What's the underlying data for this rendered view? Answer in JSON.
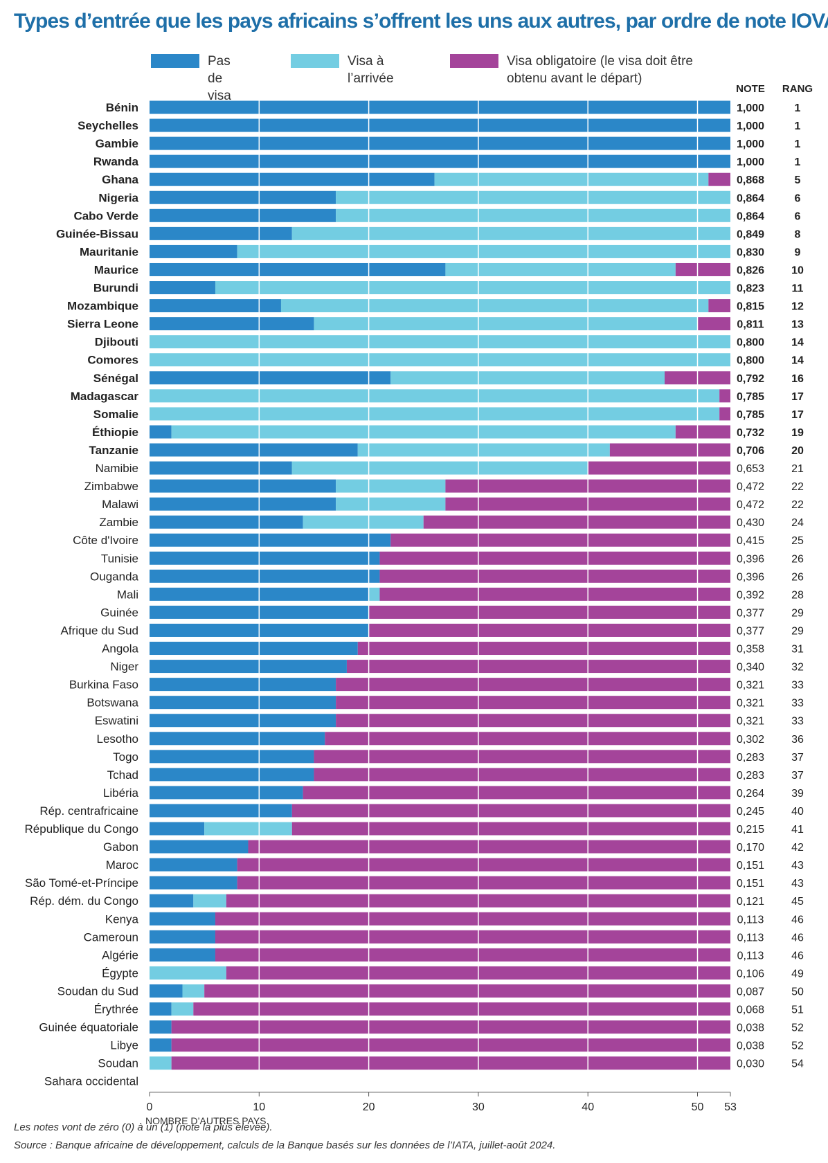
{
  "title": "Types d’entrée que les pays africains s’offrent les uns aux autres, par ordre de note IOVA",
  "legend": {
    "no_visa": "Pas de visa",
    "on_arrival": "Visa à l’arrivée",
    "required_line1": "Visa obligatoire (le visa doit être",
    "required_line2": "obtenu avant le départ)"
  },
  "colors": {
    "no_visa": "#2b87c8",
    "on_arrival": "#73cde2",
    "required": "#a4449a"
  },
  "headers": {
    "note": "NOTE",
    "rank": "RANG"
  },
  "footnotes": {
    "note": "Les notes vont de zéro (0) à un (1) (note la plus élevée).",
    "source": "Source : Banque africaine de développement, calculs de la Banque basés sur les données de l’IATA, juillet-août 2024."
  },
  "chart_data": {
    "type": "bar",
    "orientation": "horizontal",
    "stacked": true,
    "title": "Types d’entrée que les pays africains s’offrent les uns aux autres, par ordre de note IOVA",
    "xlabel": "NOMBRE D’AUTRES PAYS",
    "xlim": [
      0,
      53
    ],
    "xticks": [
      0,
      10,
      20,
      30,
      40,
      50,
      53
    ],
    "grid": true,
    "legend_position": "top",
    "series": [
      {
        "name": "Pas de visa",
        "key": "no_visa"
      },
      {
        "name": "Visa à l’arrivée",
        "key": "on_arrival"
      },
      {
        "name": "Visa obligatoire (le visa doit être obtenu avant le départ)",
        "key": "required"
      }
    ],
    "rows": [
      {
        "country": "Bénin",
        "no_visa": 53,
        "on_arrival": 0,
        "required": 0,
        "note": "1,000",
        "rank": "1",
        "bold": true
      },
      {
        "country": "Seychelles",
        "no_visa": 53,
        "on_arrival": 0,
        "required": 0,
        "note": "1,000",
        "rank": "1",
        "bold": true
      },
      {
        "country": "Gambie",
        "no_visa": 53,
        "on_arrival": 0,
        "required": 0,
        "note": "1,000",
        "rank": "1",
        "bold": true
      },
      {
        "country": "Rwanda",
        "no_visa": 53,
        "on_arrival": 0,
        "required": 0,
        "note": "1,000",
        "rank": "1",
        "bold": true
      },
      {
        "country": "Ghana",
        "no_visa": 26,
        "on_arrival": 25,
        "required": 2,
        "note": "0,868",
        "rank": "5",
        "bold": true
      },
      {
        "country": "Nigeria",
        "no_visa": 17,
        "on_arrival": 36,
        "required": 0,
        "note": "0,864",
        "rank": "6",
        "bold": true
      },
      {
        "country": "Cabo Verde",
        "no_visa": 17,
        "on_arrival": 36,
        "required": 0,
        "note": "0,864",
        "rank": "6",
        "bold": true
      },
      {
        "country": "Guinée-Bissau",
        "no_visa": 13,
        "on_arrival": 40,
        "required": 0,
        "note": "0,849",
        "rank": "8",
        "bold": true
      },
      {
        "country": "Mauritanie",
        "no_visa": 8,
        "on_arrival": 45,
        "required": 0,
        "note": "0,830",
        "rank": "9",
        "bold": true
      },
      {
        "country": "Maurice",
        "no_visa": 27,
        "on_arrival": 21,
        "required": 5,
        "note": "0,826",
        "rank": "10",
        "bold": true
      },
      {
        "country": "Burundi",
        "no_visa": 6,
        "on_arrival": 47,
        "required": 0,
        "note": "0,823",
        "rank": "11",
        "bold": true
      },
      {
        "country": "Mozambique",
        "no_visa": 12,
        "on_arrival": 39,
        "required": 2,
        "note": "0,815",
        "rank": "12",
        "bold": true
      },
      {
        "country": "Sierra Leone",
        "no_visa": 15,
        "on_arrival": 35,
        "required": 3,
        "note": "0,811",
        "rank": "13",
        "bold": true
      },
      {
        "country": "Djibouti",
        "no_visa": 0,
        "on_arrival": 53,
        "required": 0,
        "note": "0,800",
        "rank": "14",
        "bold": true
      },
      {
        "country": "Comores",
        "no_visa": 0,
        "on_arrival": 53,
        "required": 0,
        "note": "0,800",
        "rank": "14",
        "bold": true
      },
      {
        "country": "Sénégal",
        "no_visa": 22,
        "on_arrival": 25,
        "required": 6,
        "note": "0,792",
        "rank": "16",
        "bold": true
      },
      {
        "country": "Madagascar",
        "no_visa": 0,
        "on_arrival": 52,
        "required": 1,
        "note": "0,785",
        "rank": "17",
        "bold": true
      },
      {
        "country": "Somalie",
        "no_visa": 0,
        "on_arrival": 52,
        "required": 1,
        "note": "0,785",
        "rank": "17",
        "bold": true
      },
      {
        "country": "Éthiopie",
        "no_visa": 2,
        "on_arrival": 46,
        "required": 5,
        "note": "0,732",
        "rank": "19",
        "bold": true
      },
      {
        "country": "Tanzanie",
        "no_visa": 19,
        "on_arrival": 23,
        "required": 11,
        "note": "0,706",
        "rank": "20",
        "bold": true
      },
      {
        "country": "Namibie",
        "no_visa": 13,
        "on_arrival": 27,
        "required": 13,
        "note": "0,653",
        "rank": "21",
        "bold": false
      },
      {
        "country": "Zimbabwe",
        "no_visa": 17,
        "on_arrival": 10,
        "required": 26,
        "note": "0,472",
        "rank": "22",
        "bold": false
      },
      {
        "country": "Malawi",
        "no_visa": 17,
        "on_arrival": 10,
        "required": 26,
        "note": "0,472",
        "rank": "22",
        "bold": false
      },
      {
        "country": "Zambie",
        "no_visa": 14,
        "on_arrival": 11,
        "required": 28,
        "note": "0,430",
        "rank": "24",
        "bold": false
      },
      {
        "country": "Côte d'Ivoire",
        "no_visa": 22,
        "on_arrival": 0,
        "required": 31,
        "note": "0,415",
        "rank": "25",
        "bold": false
      },
      {
        "country": "Tunisie",
        "no_visa": 21,
        "on_arrival": 0,
        "required": 32,
        "note": "0,396",
        "rank": "26",
        "bold": false
      },
      {
        "country": "Ouganda",
        "no_visa": 21,
        "on_arrival": 0,
        "required": 32,
        "note": "0,396",
        "rank": "26",
        "bold": false
      },
      {
        "country": "Mali",
        "no_visa": 20,
        "on_arrival": 1,
        "required": 32,
        "note": "0,392",
        "rank": "28",
        "bold": false
      },
      {
        "country": "Guinée",
        "no_visa": 20,
        "on_arrival": 0,
        "required": 33,
        "note": "0,377",
        "rank": "29",
        "bold": false
      },
      {
        "country": "Afrique du Sud",
        "no_visa": 20,
        "on_arrival": 0,
        "required": 33,
        "note": "0,377",
        "rank": "29",
        "bold": false
      },
      {
        "country": "Angola",
        "no_visa": 19,
        "on_arrival": 0,
        "required": 34,
        "note": "0,358",
        "rank": "31",
        "bold": false
      },
      {
        "country": "Niger",
        "no_visa": 18,
        "on_arrival": 0,
        "required": 35,
        "note": "0,340",
        "rank": "32",
        "bold": false
      },
      {
        "country": "Burkina Faso",
        "no_visa": 17,
        "on_arrival": 0,
        "required": 36,
        "note": "0,321",
        "rank": "33",
        "bold": false
      },
      {
        "country": "Botswana",
        "no_visa": 17,
        "on_arrival": 0,
        "required": 36,
        "note": "0,321",
        "rank": "33",
        "bold": false
      },
      {
        "country": "Eswatini",
        "no_visa": 17,
        "on_arrival": 0,
        "required": 36,
        "note": "0,321",
        "rank": "33",
        "bold": false
      },
      {
        "country": "Lesotho",
        "no_visa": 16,
        "on_arrival": 0,
        "required": 37,
        "note": "0,302",
        "rank": "36",
        "bold": false
      },
      {
        "country": "Togo",
        "no_visa": 15,
        "on_arrival": 0,
        "required": 38,
        "note": "0,283",
        "rank": "37",
        "bold": false
      },
      {
        "country": "Tchad",
        "no_visa": 15,
        "on_arrival": 0,
        "required": 38,
        "note": "0,283",
        "rank": "37",
        "bold": false
      },
      {
        "country": "Libéria",
        "no_visa": 14,
        "on_arrival": 0,
        "required": 39,
        "note": "0,264",
        "rank": "39",
        "bold": false
      },
      {
        "country": "Rép. centrafricaine",
        "no_visa": 13,
        "on_arrival": 0,
        "required": 40,
        "note": "0,245",
        "rank": "40",
        "bold": false
      },
      {
        "country": "République du Congo",
        "no_visa": 5,
        "on_arrival": 8,
        "required": 40,
        "note": "0,215",
        "rank": "41",
        "bold": false
      },
      {
        "country": "Gabon",
        "no_visa": 9,
        "on_arrival": 0,
        "required": 44,
        "note": "0,170",
        "rank": "42",
        "bold": false
      },
      {
        "country": "Maroc",
        "no_visa": 8,
        "on_arrival": 0,
        "required": 45,
        "note": "0,151",
        "rank": "43",
        "bold": false
      },
      {
        "country": "São Tomé-et-Príncipe",
        "no_visa": 8,
        "on_arrival": 0,
        "required": 45,
        "note": "0,151",
        "rank": "43",
        "bold": false
      },
      {
        "country": "Rép. dém. du Congo",
        "no_visa": 4,
        "on_arrival": 3,
        "required": 46,
        "note": "0,121",
        "rank": "45",
        "bold": false
      },
      {
        "country": "Kenya",
        "no_visa": 6,
        "on_arrival": 0,
        "required": 47,
        "note": "0,113",
        "rank": "46",
        "bold": false
      },
      {
        "country": "Cameroun",
        "no_visa": 6,
        "on_arrival": 0,
        "required": 47,
        "note": "0,113",
        "rank": "46",
        "bold": false
      },
      {
        "country": "Algérie",
        "no_visa": 6,
        "on_arrival": 0,
        "required": 47,
        "note": "0,113",
        "rank": "46",
        "bold": false
      },
      {
        "country": "Égypte",
        "no_visa": 0,
        "on_arrival": 7,
        "required": 46,
        "note": "0,106",
        "rank": "49",
        "bold": false
      },
      {
        "country": "Soudan du Sud",
        "no_visa": 3,
        "on_arrival": 2,
        "required": 48,
        "note": "0,087",
        "rank": "50",
        "bold": false
      },
      {
        "country": "Érythrée",
        "no_visa": 2,
        "on_arrival": 2,
        "required": 49,
        "note": "0,068",
        "rank": "51",
        "bold": false
      },
      {
        "country": "Guinée équatoriale",
        "no_visa": 2,
        "on_arrival": 0,
        "required": 51,
        "note": "0,038",
        "rank": "52",
        "bold": false
      },
      {
        "country": "Libye",
        "no_visa": 2,
        "on_arrival": 0,
        "required": 51,
        "note": "0,038",
        "rank": "52",
        "bold": false
      },
      {
        "country": "Soudan",
        "no_visa": 0,
        "on_arrival": 2,
        "required": 51,
        "note": "0,030",
        "rank": "54",
        "bold": false
      },
      {
        "country": "Sahara occidental",
        "no_visa": 0,
        "on_arrival": 0,
        "required": 0,
        "note": "",
        "rank": "",
        "bold": false
      }
    ]
  }
}
